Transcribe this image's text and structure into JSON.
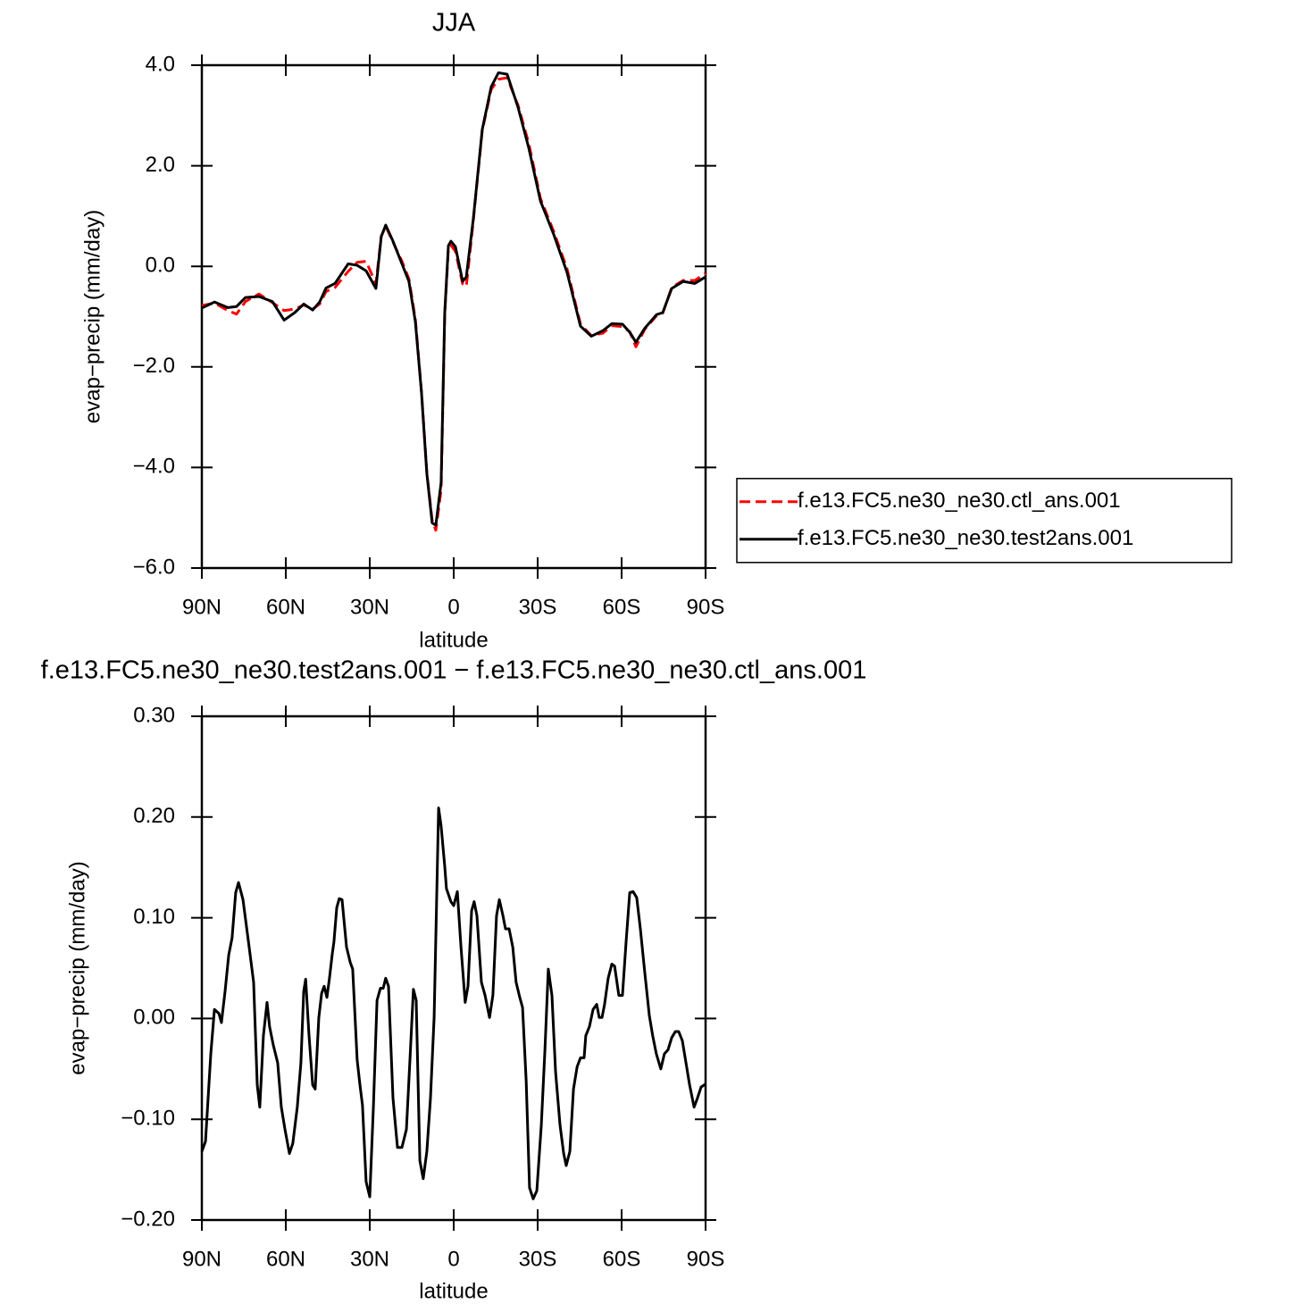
{
  "chart_data": [
    {
      "type": "line",
      "title": "JJA",
      "x_label": "latitude",
      "y_label": "evap−precip (mm/day)",
      "xlim": [
        90,
        -90
      ],
      "xticks": [
        {
          "value": 90,
          "label": "90N"
        },
        {
          "value": 60,
          "label": "60N"
        },
        {
          "value": 30,
          "label": "30N"
        },
        0,
        {
          "value": -30,
          "label": "30S"
        },
        {
          "value": -60,
          "label": "60S"
        },
        {
          "value": -90,
          "label": "90S"
        }
      ],
      "ylim": [
        -6,
        4
      ],
      "yticks": [
        {
          "value": -6,
          "label": "−6.0"
        },
        {
          "value": -4,
          "label": "−4.0"
        },
        {
          "value": -2,
          "label": "−2.0"
        },
        {
          "value": 0,
          "label": "0.0"
        },
        {
          "value": 2,
          "label": "2.0"
        },
        {
          "value": 4,
          "label": "4.0"
        }
      ],
      "legend": "right",
      "x": [
        90,
        85.5,
        80.7,
        77.6,
        74.4,
        69.6,
        64.8,
        60.6,
        56.8,
        53.6,
        50.4,
        47.9,
        45.6,
        42.4,
        37.7,
        34.5,
        31.3,
        27.8,
        25.9,
        24.3,
        21.7,
        18.5,
        16,
        13.7,
        11.5,
        9.6,
        7.7,
        6.4,
        4.5,
        3.2,
        1.9,
        1,
        -0.6,
        -3.2,
        -4.5,
        -7,
        -10.2,
        -13.4,
        -16,
        -19.1,
        -23,
        -26.8,
        -31,
        -35.7,
        -40.5,
        -45.3,
        -49.2,
        -53.3,
        -56.5,
        -60.3,
        -62.9,
        -65.1,
        -68.3,
        -72.5,
        -74.7,
        -77.9,
        -82,
        -86.2,
        -90
      ],
      "series": [
        {
          "name": "f.e13.FC5.ne30_ne30.ctl_ans.001",
          "color": "#ff0000",
          "style": "dashed",
          "values": [
            -0.78,
            -0.73,
            -0.88,
            -0.95,
            -0.7,
            -0.55,
            -0.72,
            -0.88,
            -0.85,
            -0.77,
            -0.85,
            -0.75,
            -0.5,
            -0.42,
            -0.1,
            0.08,
            0.1,
            -0.35,
            0.6,
            0.8,
            0.48,
            0.1,
            -0.25,
            -1.05,
            -2.5,
            -4.1,
            -5.05,
            -5.25,
            -4.45,
            -0.95,
            0.35,
            0.42,
            0.3,
            -0.35,
            -0.4,
            0.9,
            2.7,
            3.52,
            3.72,
            3.75,
            3.2,
            2.45,
            1.35,
            0.7,
            -0.05,
            -1.15,
            -1.38,
            -1.33,
            -1.18,
            -1.2,
            -1.3,
            -1.6,
            -1.25,
            -0.98,
            -0.93,
            -0.42,
            -0.28,
            -0.28,
            -0.14
          ]
        },
        {
          "name": "f.e13.FC5.ne30_ne30.test2ans.001",
          "color": "#000000",
          "style": "solid",
          "values": [
            -0.83,
            -0.71,
            -0.82,
            -0.8,
            -0.62,
            -0.6,
            -0.7,
            -1.07,
            -0.92,
            -0.75,
            -0.87,
            -0.71,
            -0.43,
            -0.34,
            0.05,
            0.02,
            -0.09,
            -0.44,
            0.59,
            0.82,
            0.5,
            0.05,
            -0.3,
            -1.1,
            -2.52,
            -4.12,
            -5.1,
            -5.15,
            -4.3,
            -0.92,
            0.41,
            0.5,
            0.39,
            -0.3,
            -0.21,
            0.94,
            2.72,
            3.57,
            3.85,
            3.82,
            3.16,
            2.36,
            1.3,
            0.64,
            -0.12,
            -1.19,
            -1.39,
            -1.28,
            -1.14,
            -1.15,
            -1.31,
            -1.51,
            -1.23,
            -0.96,
            -0.92,
            -0.44,
            -0.3,
            -0.34,
            -0.21
          ]
        }
      ]
    },
    {
      "type": "line",
      "title": "f.e13.FC5.ne30_ne30.test2ans.001 − f.e13.FC5.ne30_ne30.ctl_ans.001",
      "x_label": "latitude",
      "y_label": "evap−precip (mm/day)",
      "xlim": [
        90,
        -90
      ],
      "xticks": [
        {
          "value": 90,
          "label": "90N"
        },
        {
          "value": 60,
          "label": "60N"
        },
        {
          "value": 30,
          "label": "30N"
        },
        0,
        {
          "value": -30,
          "label": "30S"
        },
        {
          "value": -60,
          "label": "60S"
        },
        {
          "value": -90,
          "label": "90S"
        }
      ],
      "ylim": [
        -0.2,
        0.3
      ],
      "yticks": [
        {
          "value": -0.2,
          "label": "−0.20"
        },
        {
          "value": -0.1,
          "label": "−0.10"
        },
        {
          "value": 0,
          "label": "0.00"
        },
        {
          "value": 0.1,
          "label": "0.10"
        },
        {
          "value": 0.2,
          "label": "0.20"
        },
        {
          "value": 0.3,
          "label": "0.30"
        }
      ],
      "color": "#000000",
      "x": [
        90,
        88.7,
        86.8,
        85.5,
        83.9,
        83,
        81.7,
        80.4,
        79.2,
        77.9,
        76.9,
        75.3,
        73.1,
        71.5,
        70.2,
        69.3,
        68,
        66.7,
        65.8,
        64.5,
        62.9,
        61.6,
        60.3,
        58.7,
        57.5,
        55.9,
        54.6,
        53.6,
        52.9,
        51.7,
        50.4,
        49.5,
        48.2,
        47.2,
        46.3,
        45.3,
        44.4,
        43.4,
        42.8,
        41.8,
        40.9,
        39.9,
        38.3,
        37,
        36.1,
        34.5,
        33.5,
        32.6,
        31.3,
        30,
        28.7,
        27.4,
        26.2,
        25.2,
        24.3,
        23.3,
        21.7,
        20.1,
        18.5,
        16.9,
        15.6,
        14.4,
        13.4,
        12.1,
        10.9,
        9.6,
        8.3,
        7,
        5.4,
        4.5,
        3.2,
        2.6,
        1,
        0,
        -1.3,
        -2.6,
        -4.1,
        -5.1,
        -6.4,
        -7.3,
        -8.3,
        -9.9,
        -11.2,
        -12.8,
        -14,
        -15.3,
        -16.3,
        -17.6,
        -18.5,
        -19.8,
        -21.1,
        -22.3,
        -23.6,
        -24.6,
        -25.9,
        -27.1,
        -28.4,
        -29.7,
        -31.3,
        -32.6,
        -33.8,
        -35.1,
        -36.4,
        -38,
        -39.3,
        -40.2,
        -41.5,
        -42.8,
        -44.1,
        -45.3,
        -46.6,
        -47.2,
        -48.5,
        -49.8,
        -51.1,
        -52,
        -53,
        -53.9,
        -55.2,
        -56.5,
        -57.5,
        -59,
        -60.3,
        -61.6,
        -62.9,
        -64.1,
        -65.4,
        -66.7,
        -68.3,
        -69.9,
        -71.1,
        -72.4,
        -74,
        -75.3,
        -76.6,
        -77.9,
        -79.2,
        -80.4,
        -81.7,
        -83,
        -84.3,
        -85.9,
        -87.1,
        -88.4,
        -90
      ],
      "values": [
        -0.132,
        -0.122,
        -0.035,
        0.009,
        0.005,
        -0.004,
        0.027,
        0.063,
        0.08,
        0.125,
        0.135,
        0.118,
        0.071,
        0.036,
        -0.066,
        -0.088,
        -0.017,
        0.016,
        -0.008,
        -0.026,
        -0.044,
        -0.088,
        -0.11,
        -0.134,
        -0.124,
        -0.088,
        -0.044,
        0.027,
        0.039,
        -0.017,
        -0.066,
        -0.07,
        0.001,
        0.025,
        0.032,
        0.021,
        0.04,
        0.064,
        0.076,
        0.11,
        0.119,
        0.118,
        0.071,
        0.056,
        0.049,
        -0.041,
        -0.066,
        -0.086,
        -0.162,
        -0.177,
        -0.088,
        0.018,
        0.03,
        0.03,
        0.04,
        0.032,
        -0.079,
        -0.128,
        -0.128,
        -0.11,
        -0.039,
        0.029,
        0.018,
        -0.141,
        -0.159,
        -0.132,
        -0.079,
        0.001,
        0.209,
        0.191,
        0.151,
        0.129,
        0.116,
        0.112,
        0.126,
        0.071,
        0.016,
        0.032,
        0.107,
        0.116,
        0.102,
        0.036,
        0.023,
        0.001,
        0.023,
        0.102,
        0.118,
        0.102,
        0.089,
        0.089,
        0.071,
        0.036,
        0.021,
        0.011,
        -0.062,
        -0.168,
        -0.179,
        -0.171,
        -0.106,
        -0.031,
        0.049,
        0.023,
        -0.053,
        -0.106,
        -0.134,
        -0.146,
        -0.132,
        -0.07,
        -0.048,
        -0.039,
        -0.039,
        -0.017,
        -0.008,
        0.009,
        0.014,
        0.001,
        0.001,
        0.014,
        0.04,
        0.054,
        0.052,
        0.023,
        0.023,
        0.076,
        0.125,
        0.126,
        0.12,
        0.089,
        0.045,
        0.003,
        -0.017,
        -0.035,
        -0.05,
        -0.035,
        -0.031,
        -0.019,
        -0.013,
        -0.013,
        -0.022,
        -0.044,
        -0.066,
        -0.088,
        -0.079,
        -0.068,
        -0.065
      ]
    }
  ]
}
